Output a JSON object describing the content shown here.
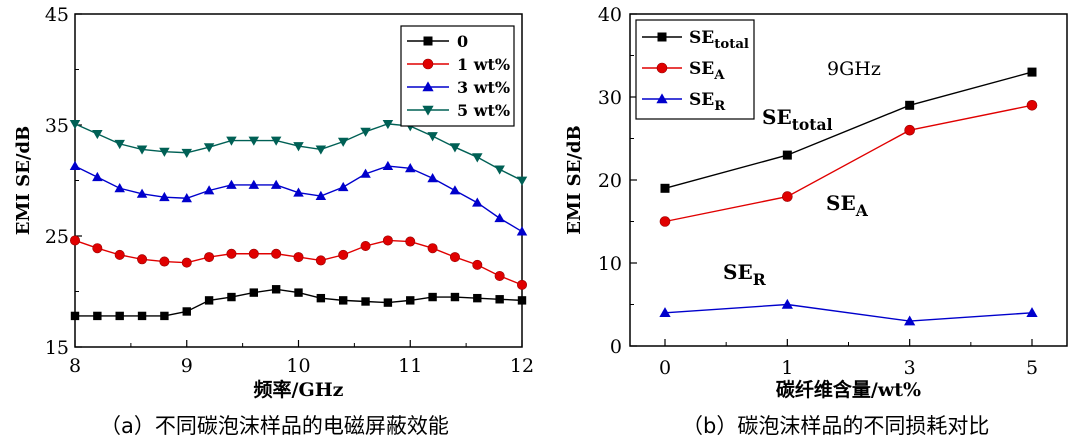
{
  "chart_data": [
    {
      "type": "line",
      "caption": "（a）不同碳泡沫样品的电磁屏蔽效能",
      "xlabel": "频率/GHz",
      "ylabel": "EMI SE/dB",
      "xlim": [
        8,
        12
      ],
      "ylim": [
        15,
        45
      ],
      "xticks": [
        "8",
        "9",
        "10",
        "11",
        "12"
      ],
      "yticks": [
        "15",
        "25",
        "35",
        "45"
      ],
      "x": [
        8.0,
        8.2,
        8.4,
        8.6,
        8.8,
        9.0,
        9.2,
        9.4,
        9.6,
        9.8,
        10.0,
        10.2,
        10.4,
        10.6,
        10.8,
        11.0,
        11.2,
        11.4,
        11.6,
        11.8,
        12.0
      ],
      "legend_position": "top-right",
      "series": [
        {
          "name": "0",
          "marker": "square",
          "color": "#000000",
          "values": [
            17.8,
            17.8,
            17.8,
            17.8,
            17.8,
            18.2,
            19.2,
            19.5,
            19.9,
            20.2,
            19.9,
            19.4,
            19.2,
            19.1,
            19.0,
            19.2,
            19.5,
            19.5,
            19.4,
            19.3,
            19.2
          ]
        },
        {
          "name": "1 wt%",
          "marker": "circle",
          "color": "#e00000",
          "values": [
            24.6,
            23.9,
            23.3,
            22.9,
            22.7,
            22.6,
            23.1,
            23.4,
            23.4,
            23.4,
            23.1,
            22.8,
            23.3,
            24.1,
            24.6,
            24.5,
            23.9,
            23.1,
            22.4,
            21.4,
            20.6
          ]
        },
        {
          "name": "3 wt%",
          "marker": "triangle-up",
          "color": "#0000cc",
          "values": [
            31.3,
            30.3,
            29.3,
            28.8,
            28.5,
            28.4,
            29.1,
            29.6,
            29.6,
            29.6,
            28.9,
            28.6,
            29.4,
            30.6,
            31.3,
            31.1,
            30.2,
            29.1,
            28.0,
            26.6,
            25.4
          ]
        },
        {
          "name": "5 wt%",
          "marker": "triangle-down",
          "color": "#006055",
          "values": [
            35.1,
            34.2,
            33.3,
            32.8,
            32.6,
            32.5,
            33.0,
            33.6,
            33.6,
            33.6,
            33.1,
            32.8,
            33.5,
            34.4,
            35.1,
            34.9,
            34.0,
            33.0,
            32.1,
            31.0,
            30.0
          ]
        }
      ],
      "legend_entries": [
        "0",
        "1 wt%",
        "3 wt%",
        "5 wt%"
      ]
    },
    {
      "type": "line",
      "caption": "（b）碳泡沫样品的不同损耗对比",
      "xlabel": "碳纤维含量/wt%",
      "ylabel": "EMI SE/dB",
      "ylim": [
        0,
        40
      ],
      "categories": [
        "0",
        "1",
        "3",
        "5"
      ],
      "yticks": [
        "0",
        "10",
        "20",
        "30",
        "40"
      ],
      "annotation_freq": "9GHz",
      "legend_position": "top-left",
      "series": [
        {
          "name": "SE",
          "sub": "total",
          "marker": "square",
          "color": "#000000",
          "values": [
            19,
            23,
            29,
            33
          ]
        },
        {
          "name": "SE",
          "sub": "A",
          "marker": "circle",
          "color": "#e00000",
          "values": [
            15,
            18,
            26,
            29
          ]
        },
        {
          "name": "SE",
          "sub": "R",
          "marker": "triangle-up",
          "color": "#0000cc",
          "values": [
            4,
            5,
            3,
            4
          ]
        }
      ],
      "labels": [
        {
          "base": "SE",
          "sub": "total"
        },
        {
          "base": "SE",
          "sub": "A"
        },
        {
          "base": "SE",
          "sub": "R"
        }
      ]
    }
  ]
}
